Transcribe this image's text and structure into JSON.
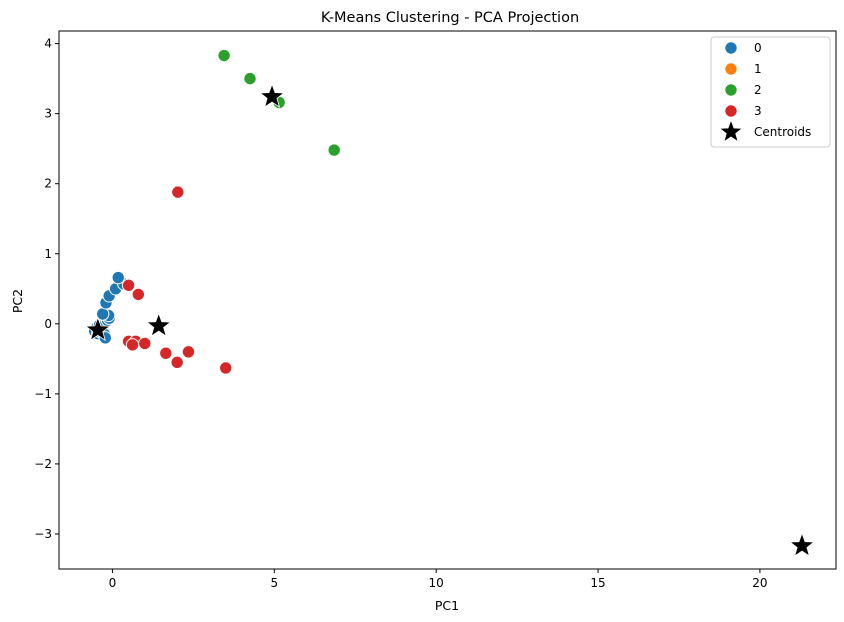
{
  "chart_data": {
    "type": "scatter",
    "title": "K-Means Clustering - PCA Projection",
    "xlabel": "PC1",
    "ylabel": "PC2",
    "xlim": [
      -1.65,
      22.35
    ],
    "ylim": [
      -3.5,
      4.18
    ],
    "xticks": [
      0,
      5,
      10,
      15,
      20
    ],
    "yticks": [
      -3,
      -2,
      -1,
      0,
      1,
      2,
      3,
      4
    ],
    "xtick_labels": [
      "0",
      "5",
      "10",
      "15",
      "20"
    ],
    "ytick_labels": [
      "−3",
      "−2",
      "−1",
      "0",
      "1",
      "2",
      "3",
      "4"
    ],
    "grid": false,
    "legend_position": "top-right",
    "series": [
      {
        "name": "0",
        "color": "#1f77b4",
        "points": [
          [
            -0.55,
            -0.1
          ],
          [
            -0.48,
            -0.05
          ],
          [
            -0.45,
            -0.14
          ],
          [
            -0.4,
            -0.02
          ],
          [
            -0.35,
            -0.12
          ],
          [
            -0.3,
            -0.08
          ],
          [
            -0.28,
            0.0
          ],
          [
            -0.25,
            -0.15
          ],
          [
            -0.22,
            -0.2
          ],
          [
            -0.2,
            0.02
          ],
          [
            -0.15,
            0.05
          ],
          [
            -0.1,
            0.08
          ],
          [
            -0.12,
            0.12
          ],
          [
            -0.3,
            0.14
          ],
          [
            -0.2,
            0.3
          ],
          [
            -0.1,
            0.4
          ],
          [
            0.1,
            0.5
          ],
          [
            0.35,
            0.57
          ],
          [
            0.18,
            0.66
          ]
        ]
      },
      {
        "name": "1",
        "color": "#ff7f0e",
        "points": [
          [
            21.3,
            -3.17
          ]
        ]
      },
      {
        "name": "2",
        "color": "#2ca02c",
        "points": [
          [
            3.45,
            3.83
          ],
          [
            4.25,
            3.5
          ],
          [
            5.15,
            3.16
          ],
          [
            6.85,
            2.48
          ]
        ]
      },
      {
        "name": "3",
        "color": "#d62728",
        "points": [
          [
            2.02,
            1.88
          ],
          [
            0.5,
            0.55
          ],
          [
            0.8,
            0.42
          ],
          [
            0.5,
            -0.25
          ],
          [
            0.72,
            -0.25
          ],
          [
            0.62,
            -0.3
          ],
          [
            1.0,
            -0.28
          ],
          [
            1.65,
            -0.42
          ],
          [
            2.0,
            -0.55
          ],
          [
            2.35,
            -0.4
          ],
          [
            3.5,
            -0.63
          ]
        ]
      }
    ],
    "centroids": {
      "name": "Centroids",
      "color": "#000000",
      "points": [
        [
          -0.45,
          -0.09
        ],
        [
          21.3,
          -3.17
        ],
        [
          4.93,
          3.24
        ],
        [
          1.43,
          -0.03
        ]
      ]
    }
  }
}
